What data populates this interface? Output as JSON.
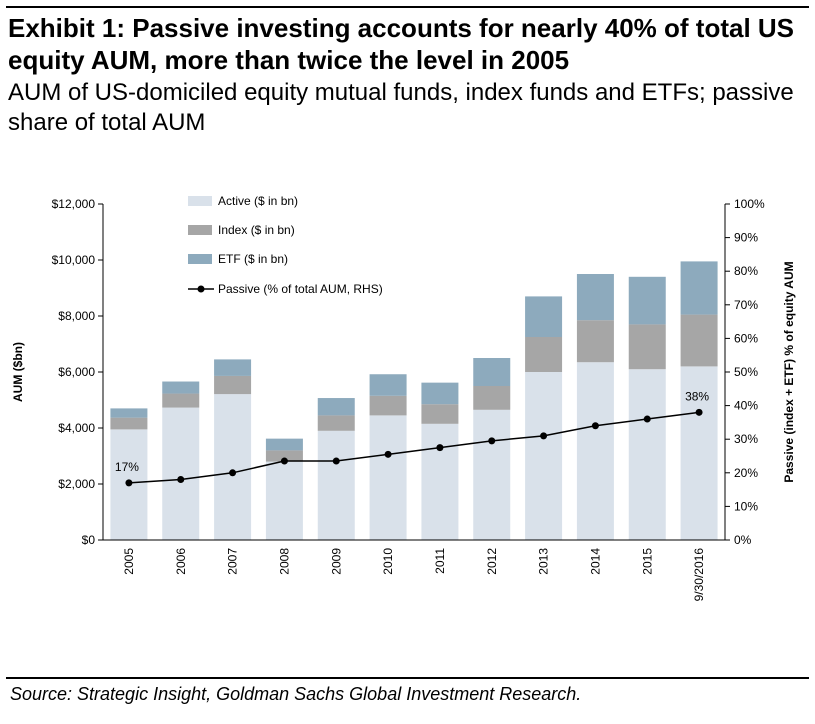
{
  "title": "Exhibit 1: Passive investing accounts for nearly 40% of total US equity AUM, more than twice the level in 2005",
  "subtitle": "AUM of US-domiciled equity mutual funds, index funds and ETFs; passive share of total AUM",
  "source": "Source: Strategic Insight, Goldman Sachs Global Investment Research.",
  "chart_data": {
    "type": "bar",
    "stacked": true,
    "categories": [
      "2005",
      "2006",
      "2007",
      "2008",
      "2009",
      "2010",
      "2011",
      "2012",
      "2013",
      "2014",
      "2015",
      "9/30/2016"
    ],
    "series": [
      {
        "name": "Active ($ in bn)",
        "values": [
          3950,
          4730,
          5210,
          2800,
          3900,
          4450,
          4150,
          4650,
          6000,
          6350,
          6100,
          6200
        ],
        "color": "#d9e1ea"
      },
      {
        "name": "Index ($ in bn)",
        "values": [
          420,
          500,
          650,
          400,
          550,
          700,
          700,
          850,
          1250,
          1500,
          1600,
          1850
        ],
        "color": "#a6a6a6"
      },
      {
        "name": "ETF ($ in bn)",
        "values": [
          330,
          430,
          590,
          420,
          620,
          770,
          770,
          1000,
          1450,
          1650,
          1700,
          1900
        ],
        "color": "#8daabd"
      }
    ],
    "line_series": {
      "name": "Passive (% of total AUM, RHS)",
      "axis": "right",
      "values": [
        17,
        18,
        20,
        23.5,
        23.5,
        25.5,
        27.5,
        29.5,
        31,
        34,
        36,
        38
      ],
      "color": "#000000"
    },
    "line_labels": [
      {
        "index": 0,
        "text": "17%"
      },
      {
        "index": 11,
        "text": "38%"
      }
    ],
    "ylabel": "AUM ($bn)",
    "y2label": "Passive (index + ETF) % of equity AUM",
    "ylim": [
      0,
      12000
    ],
    "y2lim": [
      0,
      100
    ],
    "yticks": [
      "$0",
      "$2,000",
      "$4,000",
      "$6,000",
      "$8,000",
      "$10,000",
      "$12,000"
    ],
    "y2ticks": [
      "0%",
      "10%",
      "20%",
      "30%",
      "40%",
      "50%",
      "60%",
      "70%",
      "80%",
      "90%",
      "100%"
    ],
    "legend_position": "top-left",
    "grid": false
  }
}
